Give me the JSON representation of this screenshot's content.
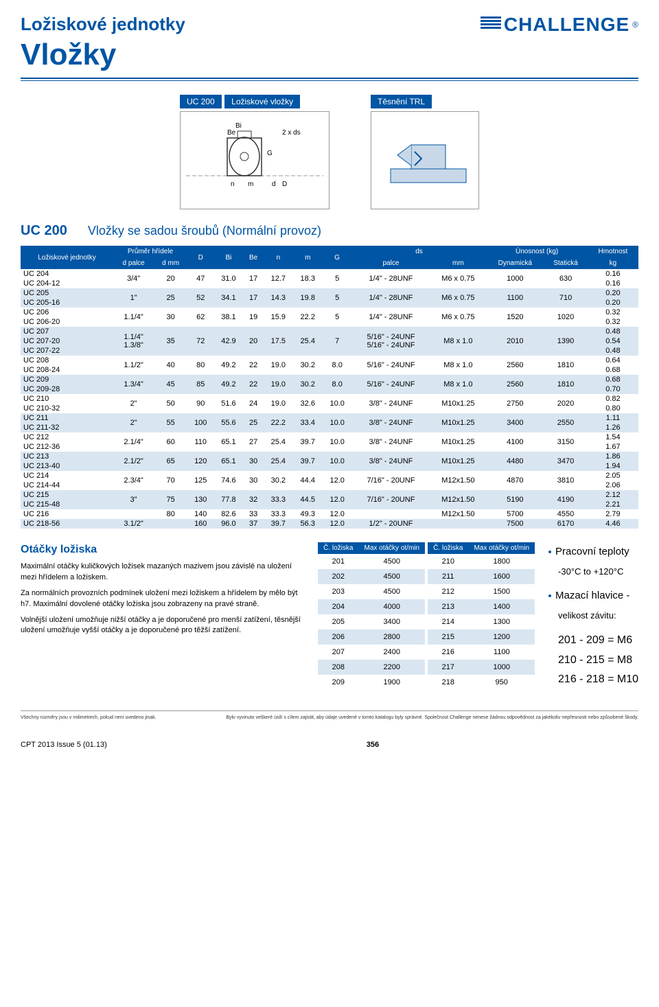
{
  "header": {
    "section_title": "Ložiskové jednotky",
    "page_title": "Vložky",
    "brand": "CHALLENGE"
  },
  "diagram": {
    "caption1_a": "UC 200",
    "caption1_b": "Ložiskové vložky",
    "caption2": "Těsnění TRL",
    "labels": {
      "Bi": "Bi",
      "Be": "Be",
      "G": "G",
      "n": "n",
      "m": "m",
      "d": "d",
      "D": "D",
      "ds": "2 x ds"
    }
  },
  "table": {
    "title_code": "UC 200",
    "title_desc": "Vložky se sadou šroubů (Normální provoz)",
    "headers": {
      "c1": "Ložiskové\njednotky",
      "c2": "Průměr hřídele",
      "c2a": "d palce",
      "c2b": "d mm",
      "c3": "D",
      "c4": "Bi",
      "c5": "Be",
      "c6": "n",
      "c7": "m",
      "c8": "G",
      "c9": "ds",
      "c9a": "palce",
      "c9b": "mm",
      "c10": "Únosnost (kg)",
      "c10a": "Dynamická",
      "c10b": "Statická",
      "c11": "Hmotnost",
      "c11a": "kg"
    },
    "rows": [
      {
        "alt": false,
        "unit": "UC 204",
        "unit2": "UC 204-12",
        "dpal": "3/4\"",
        "dmm": "20",
        "D": "47",
        "Bi": "31.0",
        "Be": "17",
        "n": "12.7",
        "m": "18.3",
        "G": "5",
        "dspal": "1/4\" - 28UNF",
        "dsmm": "M6 x 0.75",
        "dyn": "1000",
        "stat": "630",
        "kg": "0.16",
        "kg2": "0.16"
      },
      {
        "alt": true,
        "unit": "UC 205",
        "unit2": "UC 205-16",
        "dpal": "1\"",
        "dmm": "25",
        "D": "52",
        "Bi": "34.1",
        "Be": "17",
        "n": "14.3",
        "m": "19.8",
        "G": "5",
        "dspal": "1/4\" - 28UNF",
        "dsmm": "M6 x 0.75",
        "dyn": "1100",
        "stat": "710",
        "kg": "0.20",
        "kg2": "0.20"
      },
      {
        "alt": false,
        "unit": "UC 206",
        "unit2": "UC 206-20",
        "dpal": "1.1/4\"",
        "dmm": "30",
        "D": "62",
        "Bi": "38.1",
        "Be": "19",
        "n": "15.9",
        "m": "22.2",
        "G": "5",
        "dspal": "1/4\" - 28UNF",
        "dsmm": "M6 x 0.75",
        "dyn": "1520",
        "stat": "1020",
        "kg": "0.32",
        "kg2": "0.32"
      },
      {
        "alt": true,
        "unit": "UC 207",
        "unit2": "UC 207-20",
        "unit3": "UC 207-22",
        "dpal": "1.1/4\"",
        "dpal2": "1.3/8\"",
        "dmm": "35",
        "D": "72",
        "Bi": "42.9",
        "Be": "20",
        "n": "17.5",
        "m": "25.4",
        "G": "7",
        "dspal": "5/16\" - 24UNF",
        "dspal2": "5/16\" - 24UNF",
        "dsmm": "M8 x 1.0",
        "dyn": "2010",
        "stat": "1390",
        "kg": "0.48",
        "kg2": "0.54",
        "kg3": "0.48"
      },
      {
        "alt": false,
        "unit": "UC 208",
        "unit2": "UC 208-24",
        "dpal": "1.1/2\"",
        "dmm": "40",
        "D": "80",
        "Bi": "49.2",
        "Be": "22",
        "n": "19.0",
        "m": "30.2",
        "G": "8.0",
        "dspal": "5/16\" - 24UNF",
        "dsmm": "M8 x 1.0",
        "dyn": "2560",
        "stat": "1810",
        "kg": "0.64",
        "kg2": "0.68"
      },
      {
        "alt": true,
        "unit": "UC 209",
        "unit2": "UC 209-28",
        "dpal": "1.3/4\"",
        "dmm": "45",
        "D": "85",
        "Bi": "49.2",
        "Be": "22",
        "n": "19.0",
        "m": "30.2",
        "G": "8.0",
        "dspal": "5/16\" - 24UNF",
        "dsmm": "M8 x 1.0",
        "dyn": "2560",
        "stat": "1810",
        "kg": "0.68",
        "kg2": "0.70"
      },
      {
        "alt": false,
        "unit": "UC 210",
        "unit2": "UC 210-32",
        "dpal": "2\"",
        "dmm": "50",
        "D": "90",
        "Bi": "51.6",
        "Be": "24",
        "n": "19.0",
        "m": "32.6",
        "G": "10.0",
        "dspal": "3/8\" - 24UNF",
        "dsmm": "M10x1.25",
        "dyn": "2750",
        "stat": "2020",
        "kg": "0.82",
        "kg2": "0.80"
      },
      {
        "alt": true,
        "unit": "UC 211",
        "unit2": "UC 211-32",
        "dpal": "2\"",
        "dmm": "55",
        "D": "100",
        "Bi": "55.6",
        "Be": "25",
        "n": "22.2",
        "m": "33.4",
        "G": "10.0",
        "dspal": "3/8\" - 24UNF",
        "dsmm": "M10x1.25",
        "dyn": "3400",
        "stat": "2550",
        "kg": "1.11",
        "kg2": "1.26"
      },
      {
        "alt": false,
        "unit": "UC 212",
        "unit2": "UC 212-36",
        "dpal": "2.1/4\"",
        "dmm": "60",
        "D": "110",
        "Bi": "65.1",
        "Be": "27",
        "n": "25.4",
        "m": "39.7",
        "G": "10.0",
        "dspal": "3/8\" - 24UNF",
        "dsmm": "M10x1.25",
        "dyn": "4100",
        "stat": "3150",
        "kg": "1.54",
        "kg2": "1.67"
      },
      {
        "alt": true,
        "unit": "UC 213",
        "unit2": "UC 213-40",
        "dpal": "2.1/2\"",
        "dmm": "65",
        "D": "120",
        "Bi": "65.1",
        "Be": "30",
        "n": "25.4",
        "m": "39.7",
        "G": "10.0",
        "dspal": "3/8\" - 24UNF",
        "dsmm": "M10x1.25",
        "dyn": "4480",
        "stat": "3470",
        "kg": "1.86",
        "kg2": "1.94"
      },
      {
        "alt": false,
        "unit": "UC 214",
        "unit2": "UC 214-44",
        "dpal": "2.3/4\"",
        "dmm": "70",
        "D": "125",
        "Bi": "74.6",
        "Be": "30",
        "n": "30.2",
        "m": "44.4",
        "G": "12.0",
        "dspal": "7/16\" - 20UNF",
        "dsmm": "M12x1.50",
        "dyn": "4870",
        "stat": "3810",
        "kg": "2.05",
        "kg2": "2.06"
      },
      {
        "alt": true,
        "unit": "UC 215",
        "unit2": "UC 215-48",
        "dpal": "3\"",
        "dmm": "75",
        "D": "130",
        "Bi": "77.8",
        "Be": "32",
        "n": "33.3",
        "m": "44.5",
        "G": "12.0",
        "dspal": "7/16\" - 20UNF",
        "dsmm": "M12x1.50",
        "dyn": "5190",
        "stat": "4190",
        "kg": "2.12",
        "kg2": "2.21"
      },
      {
        "alt": false,
        "unit": "UC 216",
        "dmm": "80",
        "D": "140",
        "Bi": "82.6",
        "Be": "33",
        "n": "33.3",
        "m": "49.3",
        "G": "12.0",
        "dsmm": "M12x1.50",
        "dyn": "5700",
        "stat": "4550",
        "kg": "2.79"
      },
      {
        "alt": true,
        "unit": "UC 218-56",
        "dpal": "3.1/2\"",
        "D": "160",
        "Bi": "96.0",
        "Be": "37",
        "n": "39.7",
        "m": "56.3",
        "G": "12.0",
        "dspal": "1/2\" - 20UNF",
        "dyn": "7500",
        "stat": "6170",
        "kg": "4.46"
      }
    ]
  },
  "info": {
    "heading": "Otáčky ložiska",
    "p1": "Maximální otáčky kuličkových ložisek mazaných mazivem jsou závislé na uložení mezi hřídelem a ložiskem.",
    "p2": "Za normálních provozních podmínek uložení mezi ložiskem a hřídelem by mělo být h7. Maximální dovolené otáčky ložiska jsou zobrazeny na pravé straně.",
    "p3": "Volnější uložení umožňuje nižší otáčky a je doporučené pro menší zatížení, těsnější uložení umožňuje vyšší otáčky a je doporučené pro těžší zatížení.",
    "rpm_hdr1": "Č.\nložiska",
    "rpm_hdr2": "Max otáčky\not/min",
    "rpm1": [
      [
        "201",
        "4500"
      ],
      [
        "202",
        "4500"
      ],
      [
        "203",
        "4500"
      ],
      [
        "204",
        "4000"
      ],
      [
        "205",
        "3400"
      ],
      [
        "206",
        "2800"
      ],
      [
        "207",
        "2400"
      ],
      [
        "208",
        "2200"
      ],
      [
        "209",
        "1900"
      ]
    ],
    "rpm2": [
      [
        "210",
        "1800"
      ],
      [
        "211",
        "1600"
      ],
      [
        "212",
        "1500"
      ],
      [
        "213",
        "1400"
      ],
      [
        "214",
        "1300"
      ],
      [
        "215",
        "1200"
      ],
      [
        "216",
        "1100"
      ],
      [
        "217",
        "1000"
      ],
      [
        "218",
        "950"
      ]
    ],
    "bullet1": "Pracovní teploty",
    "bullet1b": "-30°C to +120°C",
    "bullet2": "Mazací hlavice -",
    "bullet2b": "velikost závitu:",
    "sizes": [
      "201 - 209  =  M6",
      "210 - 215  =  M8",
      "216 - 218  =  M10"
    ]
  },
  "footer": {
    "left": "Všechny rozměry jsou v milimetrech, pokud není uvedeno jinak.",
    "right": "Bylo vyvinuto veškeré úsilí s cílem zajistit, aby údaje uvedené v tomto katalogu byly správné. Společnost Challenge nenese žádnou odpovědnost za jakékoliv nepřesnosti nebo způsobené škody.",
    "issue": "CPT 2013 Issue 5 (01.13)",
    "page": "356"
  }
}
